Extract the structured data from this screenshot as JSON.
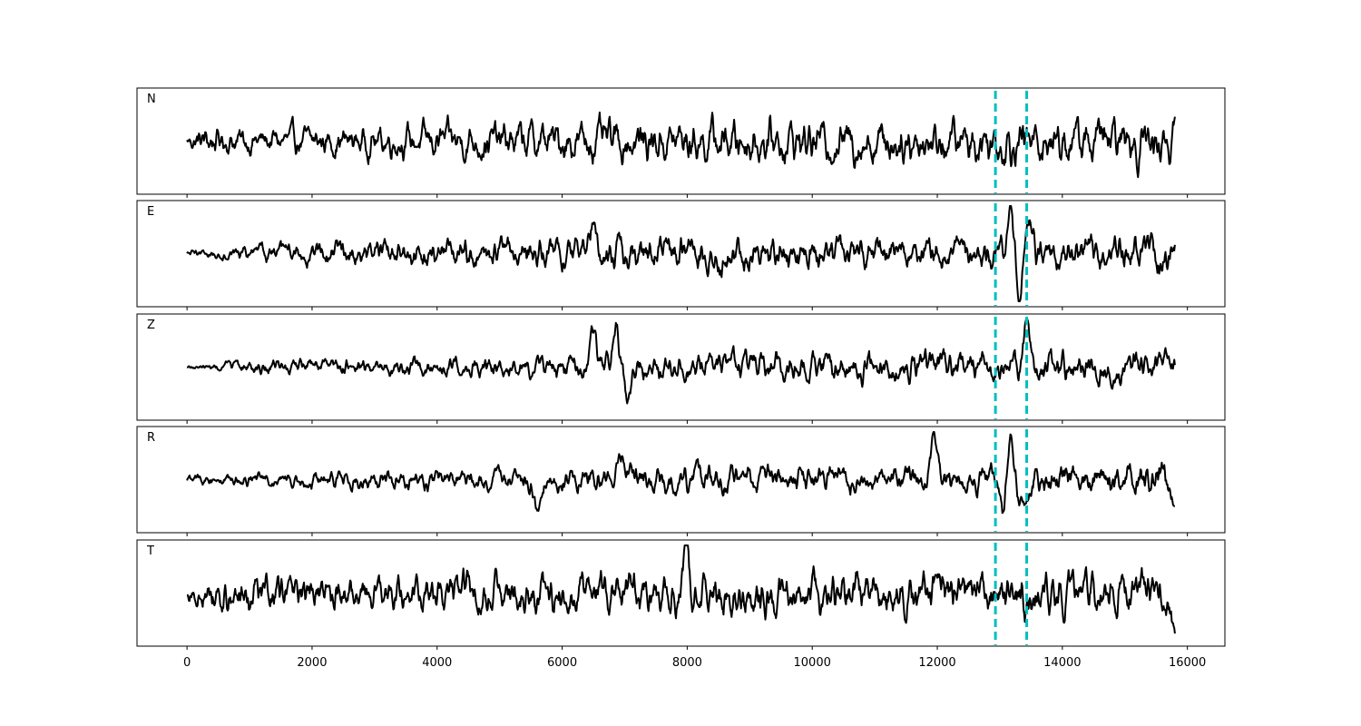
{
  "chart_data": {
    "type": "line",
    "subplots": 5,
    "shared_x": true,
    "xlim": [
      -800,
      16600
    ],
    "x_ticks": [
      0,
      2000,
      4000,
      6000,
      8000,
      10000,
      12000,
      14000,
      16000
    ],
    "x_tick_labels": [
      "0",
      "2000",
      "4000",
      "6000",
      "8000",
      "10000",
      "12000",
      "14000",
      "16000"
    ],
    "sample_count": 15800,
    "y_ticks_visible": false,
    "trace_color": "#000000",
    "pick_color": "#00bfbf",
    "pick_lines": [
      12930,
      13430
    ],
    "panels": [
      {
        "label": "N",
        "envelope": [
          [
            0,
            0.25
          ],
          [
            300,
            0.7
          ],
          [
            600,
            0.5
          ],
          [
            3000,
            0.6
          ],
          [
            5000,
            0.75
          ],
          [
            8000,
            0.85
          ],
          [
            12000,
            0.85
          ],
          [
            12900,
            0.9
          ],
          [
            15800,
            0.9
          ]
        ],
        "events": []
      },
      {
        "label": "E",
        "envelope": [
          [
            0,
            0.15
          ],
          [
            2000,
            0.45
          ],
          [
            6000,
            0.6
          ],
          [
            7500,
            0.75
          ],
          [
            12000,
            0.55
          ],
          [
            15800,
            0.75
          ]
        ],
        "events": [
          [
            6500,
            0.8
          ],
          [
            13160,
            0.9
          ],
          [
            13320,
            -0.9
          ],
          [
            13450,
            0.6
          ]
        ]
      },
      {
        "label": "Z",
        "envelope": [
          [
            0,
            0.08
          ],
          [
            1200,
            0.3
          ],
          [
            5500,
            0.4
          ],
          [
            6500,
            0.55
          ],
          [
            12000,
            0.6
          ],
          [
            15800,
            0.6
          ]
        ],
        "events": [
          [
            6480,
            0.7
          ],
          [
            6850,
            1.0
          ],
          [
            7050,
            -0.7
          ],
          [
            13430,
            0.85
          ]
        ]
      },
      {
        "label": "R",
        "envelope": [
          [
            0,
            0.2
          ],
          [
            2500,
            0.35
          ],
          [
            5500,
            0.45
          ],
          [
            7000,
            0.55
          ],
          [
            12000,
            0.5
          ],
          [
            15800,
            0.7
          ]
        ],
        "events": [
          [
            5600,
            -0.65
          ],
          [
            6950,
            0.75
          ],
          [
            11950,
            0.75
          ],
          [
            13150,
            1.0
          ],
          [
            13060,
            -0.95
          ],
          [
            13360,
            -0.6
          ]
        ]
      },
      {
        "label": "T",
        "envelope": [
          [
            0,
            0.3
          ],
          [
            400,
            0.75
          ],
          [
            3000,
            0.65
          ],
          [
            5000,
            0.8
          ],
          [
            8000,
            0.85
          ],
          [
            12000,
            0.8
          ],
          [
            15800,
            0.85
          ]
        ],
        "events": [
          [
            7990,
            0.95
          ],
          [
            13480,
            -0.5
          ],
          [
            15800,
            -0.9
          ]
        ]
      }
    ]
  }
}
